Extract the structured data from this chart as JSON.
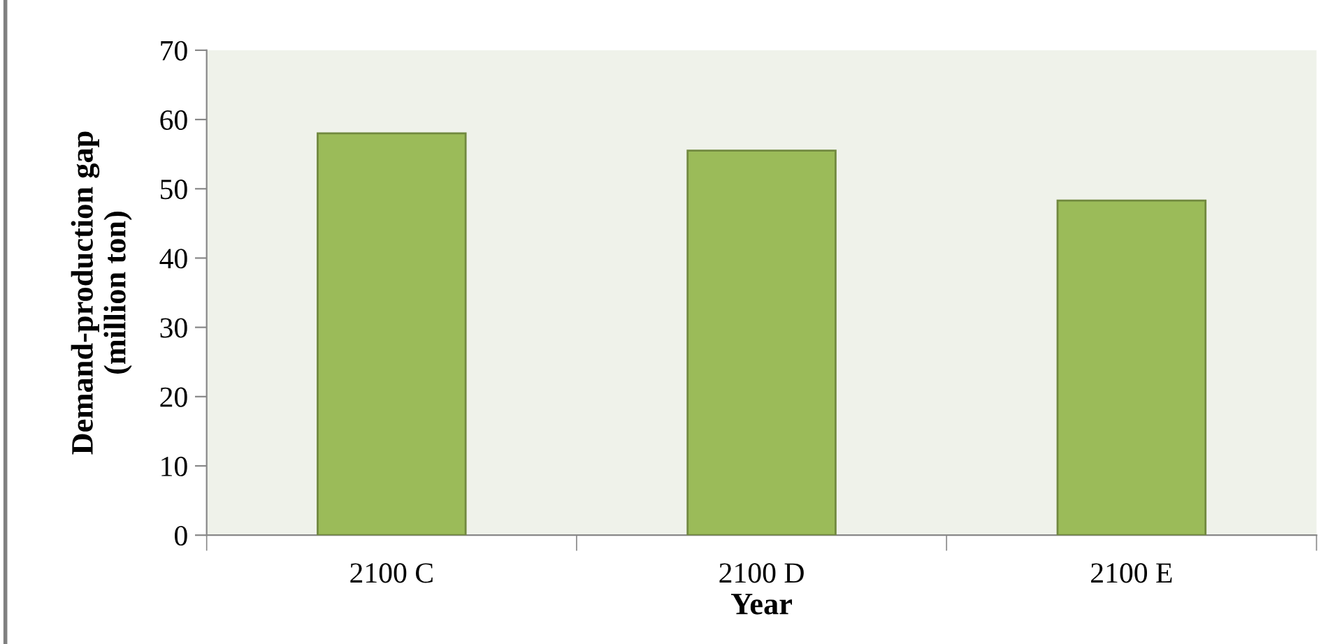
{
  "chart_data": {
    "type": "bar",
    "xlabel": "Year",
    "ylabel": "Demand-production gap\n(million ton)",
    "categories": [
      "2100 C",
      "2100 D",
      "2100 E"
    ],
    "series": [
      {
        "color": "#9bbb59",
        "values": [
          58,
          55.5,
          48.3
        ]
      }
    ],
    "ylim": [
      0,
      70
    ],
    "yticks": [
      0,
      10,
      20,
      30,
      40,
      50,
      60,
      70
    ],
    "grid": false,
    "legend": false
  }
}
